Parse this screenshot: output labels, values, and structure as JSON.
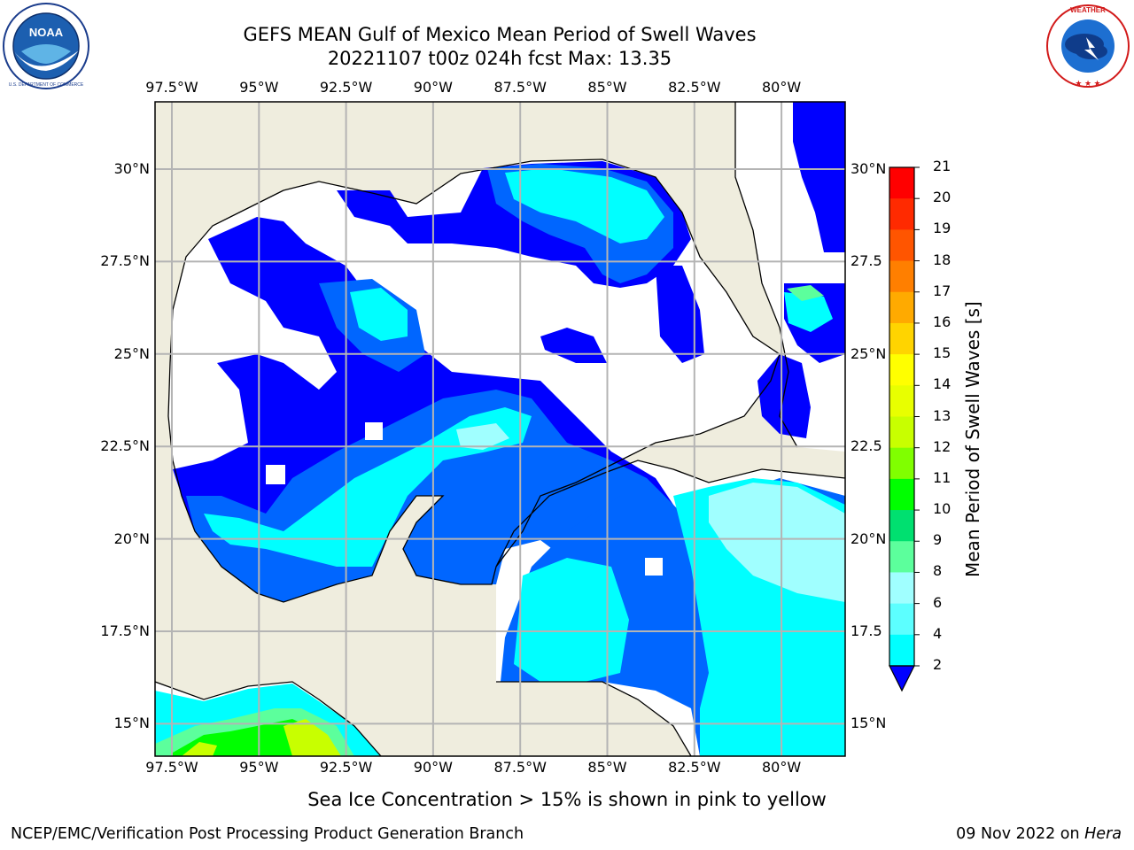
{
  "header": {
    "title_line1": "GEFS MEAN Gulf of Mexico Mean Period of Swell Waves",
    "title_line2": "20221107 t00z 024h fcst   Max: 13.35"
  },
  "logos": {
    "left": {
      "name": "NOAA",
      "ring_text": "NATIONAL OCEANIC AND ATMOSPHERIC ADMINISTRATION · U.S. DEPARTMENT OF COMMERCE"
    },
    "right": {
      "name": "NATIONAL WEATHER SERVICE"
    }
  },
  "map": {
    "lon_ticks": [
      "97.5°W",
      "95°W",
      "92.5°W",
      "90°W",
      "87.5°W",
      "85°W",
      "82.5°W",
      "80°W"
    ],
    "lon_values": [
      -97.5,
      -95,
      -92.5,
      -90,
      -87.5,
      -85,
      -82.5,
      -80
    ],
    "lat_ticks_left": [
      "30°N",
      "27.5°N",
      "25°N",
      "22.5°N",
      "20°N",
      "17.5°N",
      "15°N"
    ],
    "lat_ticks_right": [
      "30°N",
      "27.5",
      "25°N",
      "22.5",
      "20°N",
      "17.5",
      "15°N"
    ],
    "lat_values": [
      30,
      27.5,
      25,
      22.5,
      20,
      17.5,
      15
    ],
    "colors": {
      "land": "#efedde",
      "water_masked": "#ffffff",
      "grid": "#b4b4b4"
    }
  },
  "colorbar": {
    "label": "Mean Period of Swell Waves [s]",
    "ticks": [
      "21",
      "20",
      "19",
      "18",
      "17",
      "16",
      "15",
      "14",
      "13",
      "12",
      "11",
      "10",
      "9",
      "8",
      "6",
      "4",
      "2"
    ],
    "colors": [
      "#ff0000",
      "#ff2a00",
      "#ff5500",
      "#ff7f00",
      "#ffaa00",
      "#ffd400",
      "#ffff00",
      "#e8ff00",
      "#c8ff00",
      "#80ff00",
      "#00ff00",
      "#00e070",
      "#5cff9c",
      "#a0ffff",
      "#5cffff",
      "#00ffff",
      "#00aaff",
      "#0066ff",
      "#0000ff"
    ],
    "extend": "min"
  },
  "footer": {
    "note": "Sea Ice Concentration > 15% is shown in pink to yellow",
    "credit_left": "NCEP/EMC/Verification Post Processing Product Generation Branch",
    "credit_date": "09 Nov 2022 on ",
    "credit_host": "Hera"
  }
}
